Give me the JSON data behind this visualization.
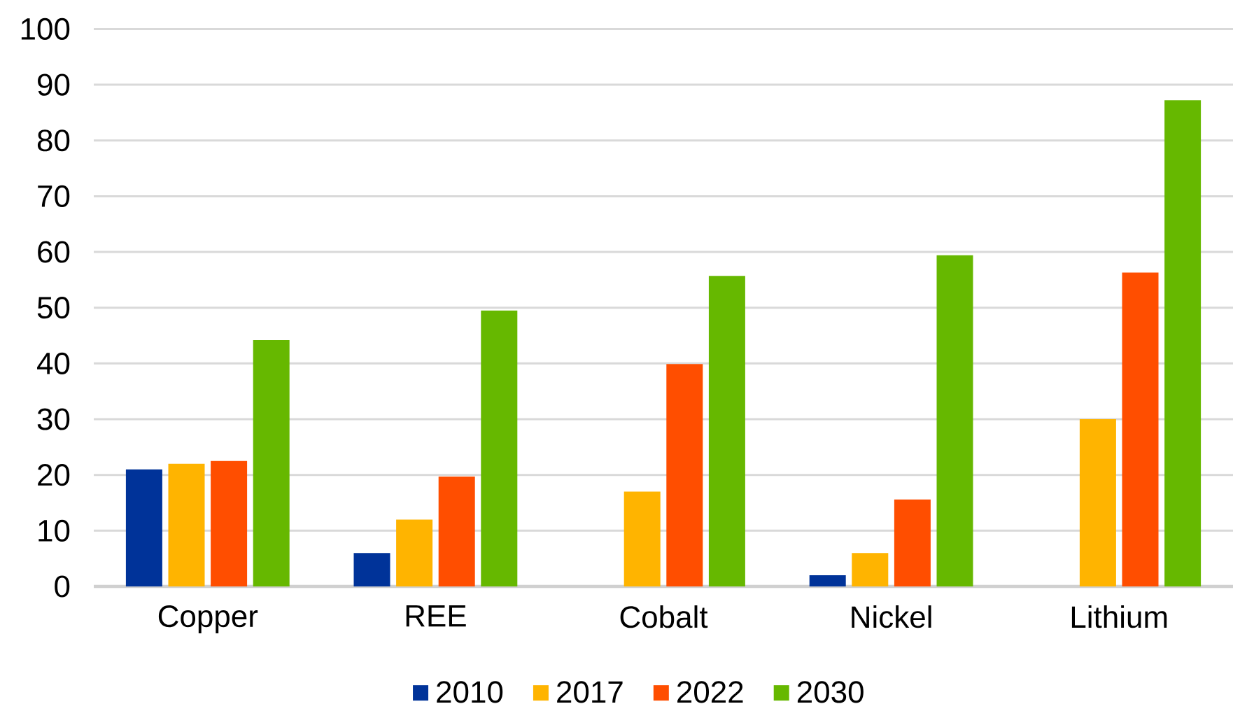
{
  "chart_data": {
    "type": "bar",
    "categories": [
      "Copper",
      "REE",
      "Cobalt",
      "Nickel",
      "Lithium"
    ],
    "series": [
      {
        "name": "2010",
        "color": "#003399",
        "values": [
          21,
          6,
          null,
          2,
          null
        ]
      },
      {
        "name": "2017",
        "color": "#ffb400",
        "values": [
          22,
          12,
          17,
          6,
          30
        ]
      },
      {
        "name": "2022",
        "color": "#ff4e00",
        "values": [
          22.5,
          19.7,
          39.9,
          15.6,
          56.3
        ]
      },
      {
        "name": "2030",
        "color": "#66b800",
        "values": [
          44.2,
          49.5,
          55.7,
          59.4,
          87.2
        ]
      }
    ],
    "ylim": [
      0,
      100
    ],
    "yticks": [
      0,
      10,
      20,
      30,
      40,
      50,
      60,
      70,
      80,
      90,
      100
    ],
    "grid": "y",
    "legend": "bottom"
  }
}
